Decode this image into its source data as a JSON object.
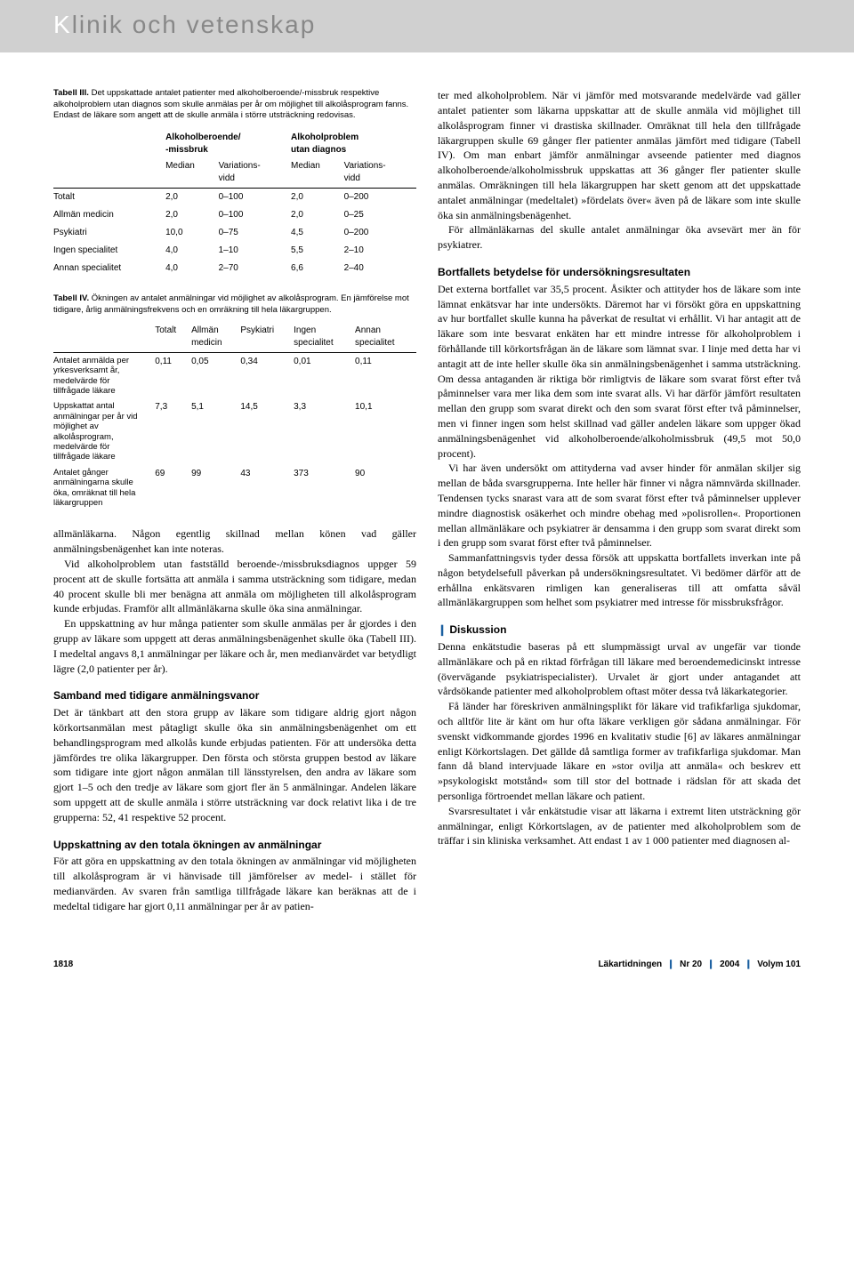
{
  "header": {
    "title_prefix": "K",
    "title_rest": "linik och vetenskap"
  },
  "table3": {
    "label": "Tabell III.",
    "caption": "Det uppskattade antalet patienter med alkoholberoende/-missbruk respektive alkoholproblem utan diagnos som skulle anmälas per år om möjlighet till alkolåsprogram fanns. Endast de läkare som angett att de skulle anmäla i större utsträckning redovisas.",
    "group1": "Alkoholberoende/\n-missbruk",
    "group2": "Alkoholproblem\nutan diagnos",
    "sub_median": "Median",
    "sub_var": "Variations-\nvidd",
    "rows": [
      {
        "label": "Totalt",
        "m1": "2,0",
        "v1": "0–100",
        "m2": "2,0",
        "v2": "0–200"
      },
      {
        "label": "Allmän medicin",
        "m1": "2,0",
        "v1": "0–100",
        "m2": "2,0",
        "v2": "0–25"
      },
      {
        "label": "Psykiatri",
        "m1": "10,0",
        "v1": "0–75",
        "m2": "4,5",
        "v2": "0–200"
      },
      {
        "label": "Ingen specialitet",
        "m1": "4,0",
        "v1": "1–10",
        "m2": "5,5",
        "v2": "2–10"
      },
      {
        "label": "Annan specialitet",
        "m1": "4,0",
        "v1": "2–70",
        "m2": "6,6",
        "v2": "2–40"
      }
    ]
  },
  "table4": {
    "label": "Tabell IV.",
    "caption": "Ökningen av antalet anmälningar vid möjlighet av alkolåsprogram. En jämförelse mot tidigare, årlig anmälningsfrekvens och en omräkning till hela läkargruppen.",
    "cols": [
      "Totalt",
      "Allmän\nmedicin",
      "Psykiatri",
      "Ingen\nspecialitet",
      "Annan\nspecialitet"
    ],
    "rows": [
      {
        "label": "Antalet anmälda per yrkesverksamt år, medelvärde för tillfrågade läkare",
        "v": [
          "0,11",
          "0,05",
          "0,34",
          "0,01",
          "0,11"
        ]
      },
      {
        "label": "Uppskattat antal anmälningar per år vid möjlighet av alkolåsprogram, medelvärde för tillfrågade läkare",
        "v": [
          "7,3",
          "5,1",
          "14,5",
          "3,3",
          "10,1"
        ]
      },
      {
        "label": "Antalet gånger anmälningarna skulle öka, omräknat till hela läkargruppen",
        "v": [
          "69",
          "99",
          "43",
          "373",
          "90"
        ]
      }
    ]
  },
  "left_body": {
    "p1": "allmänläkarna. Någon egentlig skillnad mellan könen vad gäller anmälningsbenägenhet kan inte noteras.",
    "p2": "Vid alkoholproblem utan fastställd beroende-/missbruksdiagnos uppger 59 procent att de skulle fortsätta att anmäla i samma utsträckning som tidigare, medan 40 procent skulle bli mer benägna att anmäla om möjligheten till alkolåsprogram kunde erbjudas. Framför allt allmänläkarna skulle öka sina anmälningar.",
    "p3": "En uppskattning av hur många patienter som skulle anmälas per år gjordes i den grupp av läkare som uppgett att deras anmälningsbenägenhet skulle öka (Tabell III). I medeltal angavs 8,1 anmälningar per läkare och år, men medianvärdet var betydligt lägre (2,0 patienter per år).",
    "h1": "Samband med tidigare anmälningsvanor",
    "p4": "Det är tänkbart att den stora grupp av läkare som tidigare aldrig gjort någon körkortsanmälan mest påtagligt skulle öka sin anmälningsbenägenhet om ett behandlingsprogram med alkolås kunde erbjudas patienten. För att undersöka detta jämfördes tre olika läkargrupper. Den första och största gruppen bestod av läkare som tidigare inte gjort någon anmälan till länsstyrelsen, den andra av läkare som gjort 1–5 och den tredje av läkare som gjort fler än 5 anmälningar. Andelen läkare som uppgett att de skulle anmäla i större utsträckning var dock relativt lika i de tre grupperna: 52, 41 respektive 52 procent.",
    "h2": "Uppskattning av den totala ökningen av anmälningar",
    "p5": "För att göra en uppskattning av den totala ökningen av anmälningar vid möjligheten till alkolåsprogram är vi hänvisade till jämförelser av medel- i stället för medianvärden. Av svaren från samtliga tillfrågade läkare kan beräknas att de i medeltal tidigare har gjort 0,11 anmälningar per år av patien-"
  },
  "right_body": {
    "p1": "ter med alkoholproblem. När vi jämför med motsvarande medelvärde vad gäller antalet patienter som läkarna uppskattar att de skulle anmäla vid möjlighet till alkolåsprogram finner vi drastiska skillnader. Omräknat till hela den tillfrågade läkargruppen skulle 69 gånger fler patienter anmälas jämfört med tidigare (Tabell IV). Om man enbart jämför anmälningar avseende patienter med diagnos alkoholberoende/alkoholmissbruk uppskattas att 36 gånger fler patienter skulle anmälas. Omräkningen till hela läkargruppen har skett genom att det uppskattade antalet anmälningar (medeltalet) »fördelats över« även på de läkare som inte skulle öka sin anmälningsbenägenhet.",
    "p2": "För allmänläkarnas del skulle antalet anmälningar öka avsevärt mer än för psykiatrer.",
    "h1": "Bortfallets betydelse för undersökningsresultaten",
    "p3": "Det externa bortfallet var 35,5 procent. Åsikter och attityder hos de läkare som inte lämnat enkätsvar har inte undersökts. Däremot har vi försökt göra en uppskattning av hur bortfallet skulle kunna ha påverkat de resultat vi erhållit. Vi har antagit att de läkare som inte besvarat enkäten har ett mindre intresse för alkoholproblem i förhållande till körkortsfrågan än de läkare som lämnat svar. I linje med detta har vi antagit att de inte heller skulle öka sin anmälningsbenägenhet i samma utsträckning. Om dessa antaganden är riktiga bör rimligtvis de läkare som svarat först efter två påminnelser vara mer lika dem som inte svarat alls. Vi har därför jämfört resultaten mellan den grupp som svarat direkt och den som svarat först efter två påminnelser, men vi finner ingen som helst skillnad vad gäller andelen läkare som uppger ökad anmälningsbenägenhet vid alkoholberoende/alkoholmissbruk (49,5 mot 50,0 procent).",
    "p4": "Vi har även undersökt om attityderna vad avser hinder för anmälan skiljer sig mellan de båda svarsgrupperna. Inte heller här finner vi några nämnvärda skillnader. Tendensen tycks snarast vara att de som svarat först efter två påminnelser upplever mindre diagnostisk osäkerhet och mindre obehag med »polisrollen«. Proportionen mellan allmänläkare och psykiatrer är densamma i den grupp som svarat direkt som i den grupp som svarat först efter två påminnelser.",
    "p5": "Sammanfattningsvis tyder dessa försök att uppskatta bortfallets inverkan inte på någon betydelsefull påverkan på undersökningsresultatet. Vi bedömer därför att de erhållna enkätsvaren rimligen kan generaliseras till att omfatta såväl allmänläkargruppen som helhet som psykiatrer med intresse för missbruksfrågor.",
    "h2_bar": "❙ ",
    "h2": "Diskussion",
    "p6": "Denna enkätstudie baseras på ett slumpmässigt urval av ungefär var tionde allmänläkare och på en riktad förfrågan till läkare med beroendemedicinskt intresse (övervägande psykiatrispecialister). Urvalet är gjort under antagandet att vårdsökande patienter med alkoholproblem oftast möter dessa två läkarkategorier.",
    "p7": "Få länder har föreskriven anmälningsplikt för läkare vid trafikfarliga sjukdomar, och alltför lite är känt om hur ofta läkare verkligen gör sådana anmälningar. För svenskt vidkommande gjordes 1996 en kvalitativ studie [6] av läkares anmälningar enligt Körkortslagen. Det gällde då samtliga former av trafikfarliga sjukdomar. Man fann då bland intervjuade läkare en »stor ovilja att anmäla« och beskrev ett »psykologiskt motstånd« som till stor del bottnade i rädslan för att skada det personliga förtroendet mellan läkare och patient.",
    "p8": "Svarsresultatet i vår enkätstudie visar att läkarna i extremt liten utsträckning gör anmälningar, enligt Körkortslagen, av de patienter med alkoholproblem som de träffar i sin kliniska verksamhet. Att endast 1 av 1 000 patienter med diagnosen al-"
  },
  "footer": {
    "page": "1818",
    "journal": "Läkartidningen",
    "issue": "Nr 20",
    "year": "2004",
    "volume": "Volym 101"
  }
}
